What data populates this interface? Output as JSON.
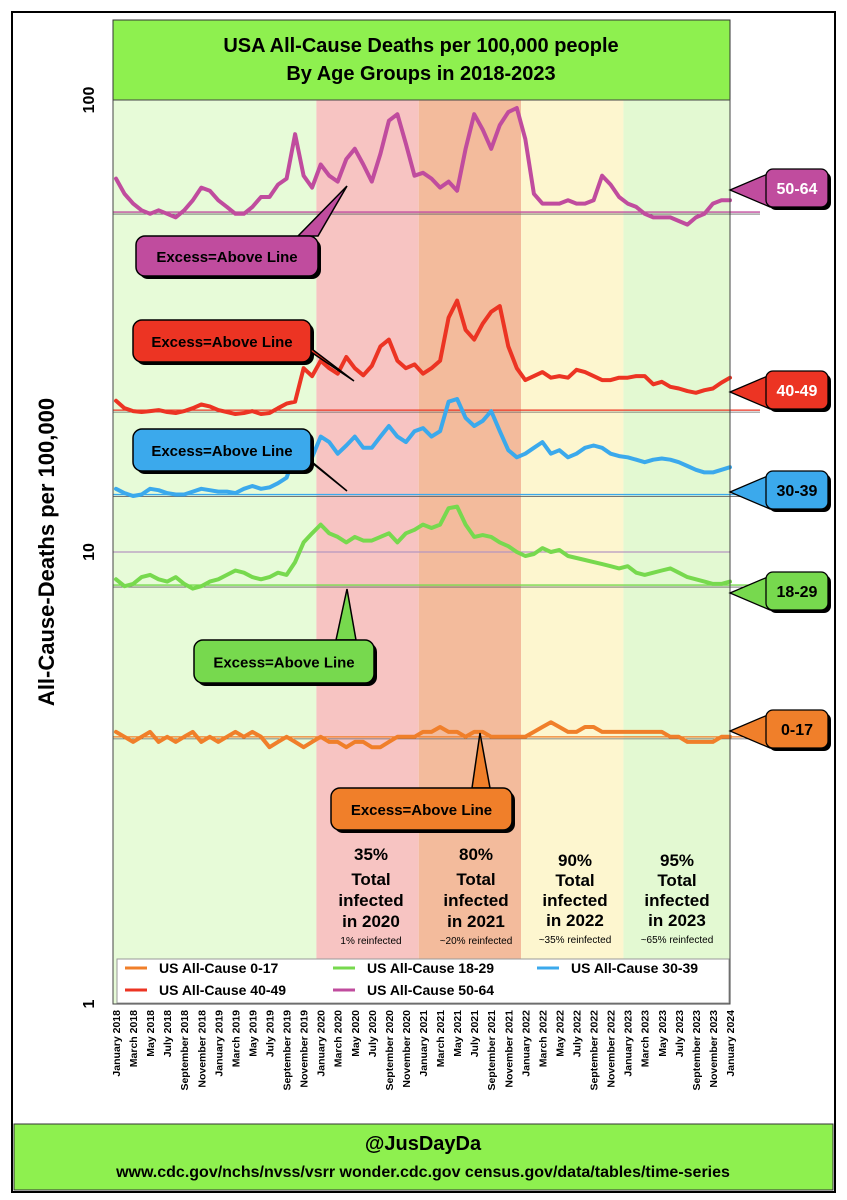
{
  "header": {
    "title_line1": "USA All-Cause Deaths per 100,000 people",
    "title_line2": "By Age Groups in 2018-2023"
  },
  "footer": {
    "handle": "@JusDayDa",
    "sources": "www.cdc.gov/nchs/nvss/vsrr  wonder.cdc.gov  census.gov/data/tables/time-series"
  },
  "colors": {
    "frame_green": "#8ef04f",
    "bg_green": "#e7fbd8",
    "bg_2020": "#f7c4c2",
    "bg_2021": "#f3bb9c",
    "bg_2022": "#fdf6cf",
    "bg_2023": "#e3f9d2",
    "c0_17": "#f07f2a",
    "c18_29": "#77d94e",
    "c30_39": "#3ba9ec",
    "c40_49": "#ec3423",
    "c50_64": "#c04c9e"
  },
  "chart_data": {
    "type": "line",
    "title": "USA All-Cause Deaths per 100,000 people By Age Groups in 2018-2023",
    "ylabel": "All-Cause-Deaths per 100,000",
    "yscale": "log",
    "ylim": [
      1,
      100
    ],
    "yticks": [
      "1",
      "10",
      "100"
    ],
    "x_labels": [
      "January 2018",
      "March 2018",
      "May 2018",
      "July 2018",
      "September 2018",
      "November 2018",
      "January 2019",
      "March 2019",
      "May 2019",
      "July 2019",
      "September 2019",
      "November 2019",
      "January 2020",
      "March 2020",
      "May 2020",
      "July 2020",
      "September 2020",
      "November 2020",
      "January 2021",
      "March 2021",
      "May 2021",
      "July 2021",
      "September 2021",
      "November 2021",
      "January 2022",
      "March 2022",
      "May 2022",
      "July 2022",
      "September 2022",
      "November 2022",
      "January 2023",
      "March 2023",
      "May 2023",
      "July 2023",
      "September 2023",
      "November 2023",
      "January 2024"
    ],
    "months": 73,
    "series": [
      {
        "name": "US All-Cause 50-64",
        "tag": "50-64",
        "baseline": 56.5,
        "values": [
          67,
          62,
          59,
          57,
          56,
          57,
          56,
          55,
          57,
          60,
          64,
          63,
          60,
          58,
          56,
          56,
          58,
          61,
          61,
          65,
          67,
          84,
          68,
          64,
          72,
          68,
          66,
          74,
          78,
          72,
          66,
          76,
          90,
          93,
          80,
          68,
          69,
          67,
          64,
          66,
          63,
          78,
          93,
          86,
          78,
          88,
          94,
          96,
          82,
          62,
          59,
          59,
          59,
          60,
          59,
          59,
          60,
          68,
          65,
          61,
          59,
          58,
          56,
          55,
          55,
          55,
          54,
          53,
          55,
          56,
          59,
          60,
          60
        ]
      },
      {
        "name": "US All-Cause 40-49",
        "tag": "40-49",
        "baseline": 20.6,
        "values": [
          21.6,
          20.8,
          20.5,
          20.4,
          20.5,
          20.6,
          20.4,
          20.3,
          20.5,
          20.8,
          21.2,
          21.0,
          20.6,
          20.4,
          20.2,
          20.3,
          20.5,
          20.2,
          20.3,
          20.8,
          21.3,
          21.5,
          25.5,
          24.5,
          26.5,
          25.5,
          24.8,
          27,
          25.5,
          24.6,
          25.8,
          28.5,
          29.5,
          26.5,
          25.5,
          26,
          24.8,
          25.5,
          26.5,
          33,
          36,
          31,
          29.5,
          32,
          34,
          35,
          28.5,
          25.5,
          24.0,
          24.5,
          25,
          24.3,
          24.5,
          24.3,
          25.3,
          25,
          24.5,
          24,
          24,
          24.3,
          24.3,
          24.5,
          24.5,
          23.5,
          23.8,
          23.2,
          23.0,
          22.7,
          22.5,
          22.8,
          23.0,
          23.7,
          24.3
        ]
      },
      {
        "name": "US All-Cause 30-39",
        "tag": "30-39",
        "baseline": 13.4,
        "values": [
          13.8,
          13.5,
          13.3,
          13.4,
          13.8,
          13.7,
          13.5,
          13.4,
          13.4,
          13.6,
          13.8,
          13.7,
          13.6,
          13.6,
          13.5,
          13.8,
          14.0,
          13.8,
          13.9,
          14.2,
          14.6,
          16.5,
          17.5,
          16.2,
          18.0,
          17.5,
          16.5,
          17.2,
          18.0,
          17.0,
          17.0,
          18.0,
          19.0,
          18.0,
          17.5,
          18.5,
          18.8,
          18.0,
          18.5,
          21.5,
          21.8,
          19.8,
          19.0,
          19.5,
          20.5,
          18.5,
          16.8,
          16.2,
          16.5,
          17.0,
          17.5,
          16.5,
          16.8,
          16.2,
          16.5,
          17.0,
          17.2,
          17.0,
          16.5,
          16.3,
          16.2,
          16.0,
          15.8,
          16.0,
          16.1,
          16.0,
          15.8,
          15.5,
          15.2,
          15.0,
          15.0,
          15.2,
          15.4
        ]
      },
      {
        "name": "US All-Cause 18-29",
        "tag": "18-29",
        "baseline": 8.45,
        "values": [
          8.7,
          8.4,
          8.5,
          8.8,
          8.9,
          8.7,
          8.6,
          8.8,
          8.5,
          8.3,
          8.4,
          8.6,
          8.7,
          8.9,
          9.1,
          9.0,
          8.8,
          8.7,
          8.8,
          9.0,
          8.9,
          9.5,
          10.5,
          11.0,
          11.5,
          11.0,
          10.8,
          10.5,
          10.8,
          10.6,
          10.6,
          10.8,
          11.0,
          10.5,
          11.0,
          11.2,
          11.5,
          11.3,
          11.5,
          12.5,
          12.6,
          11.5,
          10.8,
          10.9,
          10.8,
          10.5,
          10.3,
          10.0,
          9.8,
          9.9,
          10.2,
          10.0,
          10.1,
          9.8,
          9.7,
          9.6,
          9.5,
          9.4,
          9.3,
          9.2,
          9.3,
          9.0,
          8.9,
          9.0,
          9.1,
          9.2,
          9.0,
          8.8,
          8.7,
          8.6,
          8.5,
          8.5,
          8.6
        ]
      },
      {
        "name": "US All-Cause 0-17",
        "tag": "0-17",
        "baseline": 3.9,
        "values": [
          4.0,
          3.9,
          3.8,
          3.9,
          4.0,
          3.8,
          3.9,
          3.8,
          3.9,
          4.0,
          3.8,
          3.9,
          3.8,
          3.9,
          4.0,
          3.9,
          4.0,
          3.9,
          3.7,
          3.8,
          3.9,
          3.8,
          3.7,
          3.8,
          3.9,
          3.8,
          3.8,
          3.7,
          3.8,
          3.8,
          3.7,
          3.7,
          3.8,
          3.9,
          3.9,
          3.9,
          4.0,
          4.0,
          4.1,
          4.0,
          4.0,
          3.9,
          4.0,
          4.0,
          3.9,
          3.9,
          3.9,
          3.9,
          3.9,
          4.0,
          4.1,
          4.2,
          4.1,
          4.0,
          4.0,
          4.1,
          4.1,
          4.0,
          4.0,
          4.0,
          4.0,
          4.0,
          4.0,
          4.0,
          4.0,
          3.9,
          3.9,
          3.8,
          3.8,
          3.8,
          3.8,
          3.9,
          3.9
        ]
      }
    ],
    "reference_line": {
      "value": 10
    }
  },
  "callouts": [
    {
      "text": "Excess=Above Line",
      "series": "50-64"
    },
    {
      "text": "Excess=Above Line",
      "series": "40-49"
    },
    {
      "text": "Excess=Above Line",
      "series": "30-39"
    },
    {
      "text": "Excess=Above Line",
      "series": "18-29"
    },
    {
      "text": "Excess=Above Line",
      "series": "0-17"
    }
  ],
  "infection_notes": [
    {
      "pct": "35%",
      "l1": "Total",
      "l2": "infected",
      "l3": "in 2020",
      "sub": "1% reinfected"
    },
    {
      "pct": "80%",
      "l1": "Total",
      "l2": "infected",
      "l3": "in 2021",
      "sub": "~20% reinfected"
    },
    {
      "pct": "90%",
      "l1": "Total",
      "l2": "infected",
      "l3": "in 2022",
      "sub": "~35% reinfected"
    },
    {
      "pct": "95%",
      "l1": "Total",
      "l2": "infected",
      "l3": "in 2023",
      "sub": "~65% reinfected"
    }
  ],
  "legend": [
    {
      "label": "US All-Cause 0-17",
      "series": "0-17"
    },
    {
      "label": "US All-Cause 18-29",
      "series": "18-29"
    },
    {
      "label": "US All-Cause 30-39",
      "series": "30-39"
    },
    {
      "label": "US All-Cause 40-49",
      "series": "40-49"
    },
    {
      "label": "US All-Cause 50-64",
      "series": "50-64"
    }
  ]
}
